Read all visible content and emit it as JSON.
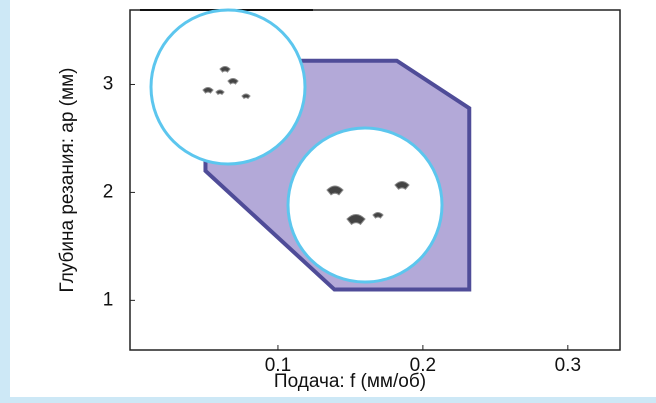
{
  "chart_data": {
    "type": "area",
    "x_label": "Подача: f (мм/об)",
    "y_label": "Глубина резания: ap (мм)",
    "x": [
      0.05,
      0.05,
      0.182,
      0.232,
      0.232,
      0.139
    ],
    "values": [
      2.2,
      3.22,
      3.22,
      2.78,
      1.1,
      1.1
    ],
    "color": "#b3a9d8",
    "edge_color": "#4f4c98",
    "xlim": [
      0,
      0.336
    ],
    "xticks": [
      0.1,
      0.2,
      0.3
    ],
    "ylim": [
      0.54,
      3.69
    ],
    "yticks": [
      1,
      2,
      3
    ]
  }
}
